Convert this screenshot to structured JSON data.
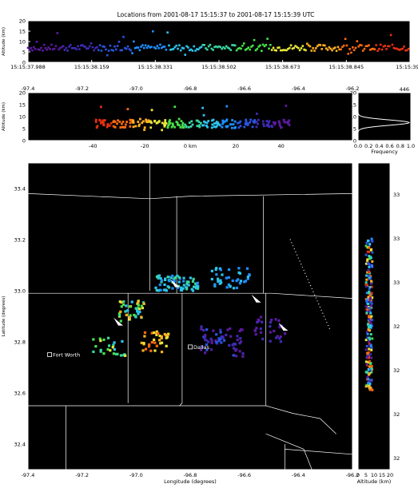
{
  "title": "Locations from 2001-08-17 15:15:37 to 2001-08-17 15:15:39 UTC",
  "count_label": "446",
  "colors": {
    "background": "#000000",
    "frame": "#ffffff",
    "text": "#000000",
    "grid": "#cfcfcf",
    "pin": "#ffffff"
  },
  "palette": [
    "#5a1a9e",
    "#3d2bb3",
    "#2a55e0",
    "#1f8fff",
    "#2ec4ee",
    "#3ad6a0",
    "#48e04a",
    "#e8e83a",
    "#ffb020",
    "#ff6a10",
    "#e43010"
  ],
  "chart_data": [
    {
      "id": "time_altitude",
      "type": "scatter",
      "x_tick_labels_top": [
        "15:15:37.988",
        "15:15:38.159",
        "15:15:38.331",
        "15:15:38.502",
        "15:15:38.673",
        "15:15:38.845",
        "15:15:39.0"
      ],
      "y_ticks": [
        0,
        5,
        10,
        15,
        20
      ],
      "ylim": [
        0,
        20
      ],
      "xlim": [
        0,
        1
      ],
      "ylabel": "Altitude (km)",
      "grid": false
    },
    {
      "id": "lon_altitude",
      "type": "scatter",
      "x_ticks_top": [
        -97.4,
        -97.2,
        -97.0,
        -96.8,
        -96.6,
        -96.4,
        -96.2
      ],
      "x_tick_labels_top": [
        "-97.4",
        "-97.2",
        "-97.0",
        "-96.8",
        "-96.6",
        "-96.4",
        "-96.2"
      ],
      "x_tick_labels_bottom": [
        "-40",
        "-20",
        "0 km",
        "20",
        "40"
      ],
      "y_ticks": [
        0,
        5,
        10,
        15,
        20
      ],
      "ylim": [
        0,
        20
      ],
      "ylabel": "Altitude (km)",
      "grid": false
    },
    {
      "id": "altitude_histogram",
      "type": "line",
      "xlabel": "Frequency",
      "x_tick_labels": [
        "0.0",
        "0.2",
        "0.4",
        "0.6",
        "0.8",
        "1.0"
      ],
      "y_ticks": [
        0,
        5,
        10,
        15,
        20
      ],
      "ylim": [
        0,
        20
      ],
      "xlim": [
        0,
        1
      ],
      "peak_altitude_km": 7.5,
      "count": 446
    },
    {
      "id": "plan_view",
      "type": "scatter",
      "xlabel": "Longitude (degrees)",
      "ylabel": "Latitude (degrees)",
      "xlim": [
        -97.4,
        -96.2
      ],
      "ylim": [
        32.3,
        33.5
      ],
      "x_tick_labels": [
        "-97.4",
        "-97.2",
        "-97.0",
        "-96.8",
        "-96.6",
        "-96.4",
        "-96.2"
      ],
      "y_tick_labels": [
        "33.4",
        "33.2",
        "33.0",
        "32.8",
        "32.6",
        "32.4"
      ],
      "right_km_labels": [
        "60",
        "40",
        "20",
        "0 km",
        "-20",
        "-40",
        "-60"
      ],
      "cities": [
        {
          "name": "Fort Worth",
          "lon": -97.32,
          "lat": 32.75
        },
        {
          "name": "Dallas",
          "lon": -96.8,
          "lat": 32.78
        }
      ],
      "grid": false
    },
    {
      "id": "altitude_latitude",
      "type": "scatter",
      "xlabel": "Altitude (km)",
      "x_tick_labels": [
        "0",
        "5",
        "10",
        "15",
        "20"
      ],
      "xlim": [
        0,
        20
      ],
      "right_lat_labels": [
        "33",
        "33",
        "33",
        "32",
        "32",
        "32",
        "32"
      ],
      "grid": false
    }
  ]
}
